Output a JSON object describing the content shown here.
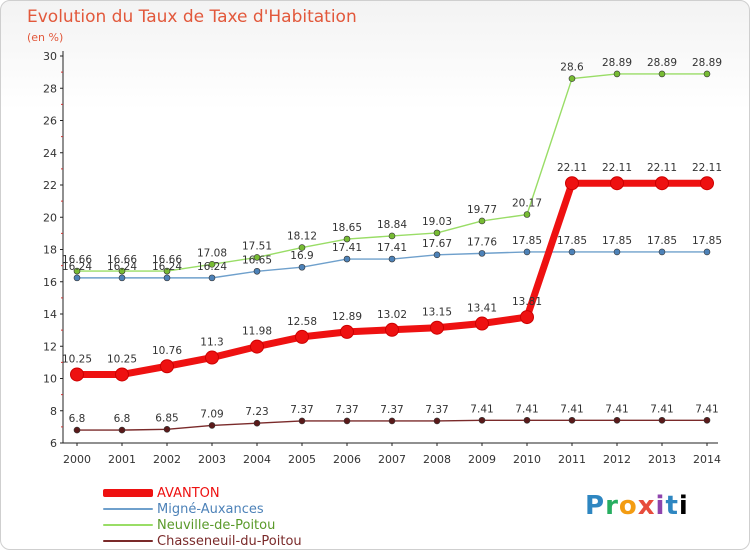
{
  "chart_data": {
    "type": "line",
    "title": "Evolution du Taux de Taxe d'Habitation",
    "subtitle": "(en %)",
    "x": [
      "2000",
      "2001",
      "2002",
      "2003",
      "2004",
      "2005",
      "2006",
      "2007",
      "2008",
      "2009",
      "2010",
      "2011",
      "2012",
      "2013",
      "2014"
    ],
    "ylim": [
      6,
      30
    ],
    "yticks": [
      6,
      8,
      10,
      12,
      14,
      16,
      18,
      20,
      22,
      24,
      26,
      28,
      30
    ],
    "grid": false,
    "legend_position": "bottom-left",
    "series": [
      {
        "name": "Neuville-de-Poitou",
        "color": "#99dd66",
        "marker": "#77bb33",
        "values": [
          16.66,
          16.66,
          16.66,
          17.08,
          17.51,
          18.12,
          18.65,
          18.84,
          19.03,
          19.77,
          20.17,
          28.6,
          28.89,
          28.89,
          28.89
        ],
        "labels": [
          "16.66",
          "16.66",
          "16.66",
          "17.08",
          "17.51",
          "18.12",
          "18.65",
          "18.84",
          "19.03",
          "19.77",
          "20.17",
          "28.6",
          "28.89",
          "28.89",
          "28.89"
        ]
      },
      {
        "name": "Migné-Auxances",
        "color": "#6fa0cc",
        "marker": "#4d82b8",
        "values": [
          16.24,
          16.24,
          16.24,
          16.24,
          16.65,
          16.9,
          17.41,
          17.41,
          17.67,
          17.76,
          17.85,
          17.85,
          17.85,
          17.85,
          17.85
        ],
        "labels": [
          "16.24",
          "16.24",
          "16.24",
          "16.24",
          "16.65",
          "16.9",
          "17.41",
          "17.41",
          "17.67",
          "17.76",
          "17.85",
          "17.85",
          "17.85",
          "17.85",
          "17.85"
        ]
      },
      {
        "name": "AVANTON",
        "color": "#ee1111",
        "marker": "#ee1111",
        "values": [
          10.25,
          10.25,
          10.76,
          11.3,
          11.98,
          12.58,
          12.89,
          13.02,
          13.15,
          13.41,
          13.81,
          22.11,
          22.11,
          22.11,
          22.11
        ],
        "labels": [
          "10.25",
          "10.25",
          "10.76",
          "11.3",
          "11.98",
          "12.58",
          "12.89",
          "13.02",
          "13.15",
          "13.41",
          "13.81",
          "22.11",
          "22.11",
          "22.11",
          "22.11"
        ]
      },
      {
        "name": "Chasseneuil-du-Poitou",
        "color": "#7a2a2a",
        "marker": "#5a1a1a",
        "values": [
          6.8,
          6.8,
          6.85,
          7.09,
          7.23,
          7.37,
          7.37,
          7.37,
          7.37,
          7.41,
          7.41,
          7.41,
          7.41,
          7.41,
          7.41
        ],
        "labels": [
          "6.8",
          "6.8",
          "6.85",
          "7.09",
          "7.23",
          "7.37",
          "7.37",
          "7.37",
          "7.37",
          "7.41",
          "7.41",
          "7.41",
          "7.41",
          "7.41",
          "7.41"
        ]
      }
    ]
  },
  "legend": [
    {
      "label": "AVANTON",
      "color": "#ee1111"
    },
    {
      "label": "Migné-Auxances",
      "color": "#6fa0cc"
    },
    {
      "label": "Neuville-de-Poitou",
      "color": "#99dd66"
    },
    {
      "label": "Chasseneuil-du-Poitou",
      "color": "#7a2a2a"
    }
  ],
  "logo": {
    "letters": [
      "P",
      "r",
      "o",
      "x",
      "i",
      "t",
      "i"
    ]
  }
}
